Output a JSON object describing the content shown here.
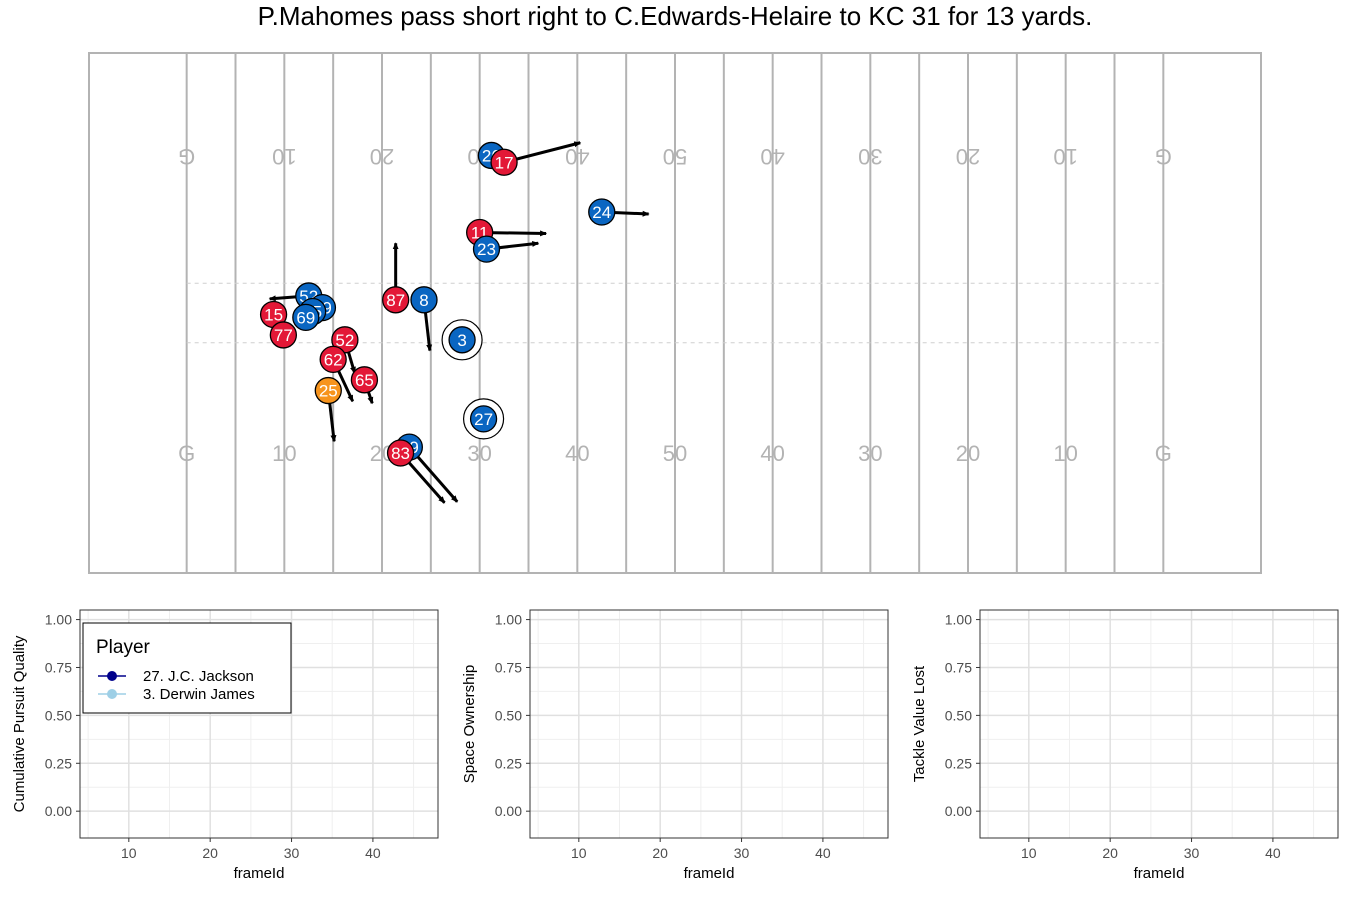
{
  "title": "P.Mahomes pass short right to C.Edwards-Helaire to KC 31 for 13 yards.",
  "colors": {
    "offense": "#e31837",
    "defense": "#0a66c2",
    "ball_carrier": "#f7941d",
    "field_lines": "#b3b3b3",
    "grid": "#e0e0e0",
    "arrow": "#000000",
    "series_1": "#00008b",
    "series_2": "#9ecfe6"
  },
  "field": {
    "labels_top": [
      "G",
      "10",
      "20",
      "30",
      "40",
      "50",
      "40",
      "30",
      "20",
      "10",
      "G"
    ],
    "labels_bottom": [
      "G",
      "10",
      "20",
      "30",
      "40",
      "50",
      "40",
      "30",
      "20",
      "10",
      "G"
    ],
    "players": [
      {
        "num": "26",
        "team": "defense",
        "x": 41.2,
        "y": 42.8,
        "dx": 0,
        "dy": 0
      },
      {
        "num": "17",
        "team": "offense",
        "x": 42.5,
        "y": 42.1,
        "dx": 7.8,
        "dy": 2.0
      },
      {
        "num": "24",
        "team": "defense",
        "x": 52.5,
        "y": 37.0,
        "dx": 4.8,
        "dy": -0.2
      },
      {
        "num": "11",
        "team": "offense",
        "x": 40.0,
        "y": 34.9,
        "dx": 6.8,
        "dy": -0.1
      },
      {
        "num": "23",
        "team": "defense",
        "x": 40.7,
        "y": 33.2,
        "dx": 5.3,
        "dy": 0.6
      },
      {
        "num": "87",
        "team": "offense",
        "x": 31.4,
        "y": 28.0,
        "dx": 0.0,
        "dy": 5.8
      },
      {
        "num": "8",
        "team": "defense",
        "x": 34.3,
        "y": 28.0,
        "dx": 0.6,
        "dy": -5.2
      },
      {
        "num": "52",
        "team": "defense",
        "x": 22.5,
        "y": 28.4,
        "dx": -4.0,
        "dy": -0.3
      },
      {
        "num": "99",
        "team": "defense",
        "x": 23.9,
        "y": 27.2,
        "dx": 0,
        "dy": 0
      },
      {
        "num": "55",
        "team": "defense",
        "x": 22.9,
        "y": 26.8,
        "dx": 0,
        "dy": 0
      },
      {
        "num": "69",
        "team": "defense",
        "x": 22.2,
        "y": 26.2,
        "dx": 0,
        "dy": 0
      },
      {
        "num": "15",
        "team": "offense",
        "x": 18.9,
        "y": 26.5,
        "dx": 0,
        "dy": 0
      },
      {
        "num": "77",
        "team": "offense",
        "x": 19.9,
        "y": 24.4,
        "dx": 0,
        "dy": 0
      },
      {
        "num": "52",
        "team": "offense",
        "x": 26.2,
        "y": 23.9,
        "dx": 1.0,
        "dy": -3.4
      },
      {
        "num": "62",
        "team": "offense",
        "x": 25.0,
        "y": 21.9,
        "dx": 2.0,
        "dy": -4.3
      },
      {
        "num": "65",
        "team": "offense",
        "x": 28.2,
        "y": 19.8,
        "dx": 0.8,
        "dy": -2.4
      },
      {
        "num": "25",
        "team": "ball_carrier",
        "x": 24.5,
        "y": 18.7,
        "dx": 0.6,
        "dy": -5.2
      },
      {
        "num": "3",
        "team": "defense",
        "x": 38.2,
        "y": 23.9,
        "dx": -1.9,
        "dy": 0.1
      },
      {
        "num": "27",
        "team": "defense",
        "x": 40.4,
        "y": 15.8,
        "dx": 0.4,
        "dy": -1.8
      },
      {
        "num": "49",
        "team": "defense",
        "x": 32.8,
        "y": 12.9,
        "dx": 4.9,
        "dy": -5.6
      },
      {
        "num": "83",
        "team": "offense",
        "x": 31.9,
        "y": 12.3,
        "dx": 4.5,
        "dy": -5.1
      }
    ],
    "highlighted": [
      "3",
      "27"
    ]
  },
  "panels": [
    {
      "ylabel": "Cumulative Pursuit Quality",
      "xlabel": "frameId",
      "xticks": [
        "10",
        "20",
        "30",
        "40"
      ],
      "yticks": [
        "0.00",
        "0.25",
        "0.50",
        "0.75",
        "1.00"
      ],
      "legend": {
        "title": "Player",
        "items": [
          "27. J.C. Jackson",
          "3. Derwin James"
        ]
      }
    },
    {
      "ylabel": "Space Ownership",
      "xlabel": "frameId",
      "xticks": [
        "10",
        "20",
        "30",
        "40"
      ],
      "yticks": [
        "0.00",
        "0.25",
        "0.50",
        "0.75",
        "1.00"
      ]
    },
    {
      "ylabel": "Tackle Value Lost",
      "xlabel": "frameId",
      "xticks": [
        "10",
        "20",
        "30",
        "40"
      ],
      "yticks": [
        "0.00",
        "0.25",
        "0.50",
        "0.75",
        "1.00"
      ]
    }
  ],
  "chart_data": [
    {
      "type": "scatter",
      "title": "P.Mahomes pass short right to C.Edwards-Helaire to KC 31 for 13 yards.",
      "xlim": [
        0,
        120
      ],
      "ylim": [
        0,
        53.3
      ],
      "series": [
        {
          "name": "offense",
          "points": [
            [
              "17",
              42.5,
              42.1
            ],
            [
              "11",
              40.0,
              34.9
            ],
            [
              "87",
              31.4,
              28.0
            ],
            [
              "15",
              18.9,
              26.5
            ],
            [
              "77",
              19.9,
              24.4
            ],
            [
              "52",
              26.2,
              23.9
            ],
            [
              "62",
              25.0,
              21.9
            ],
            [
              "65",
              28.2,
              19.8
            ],
            [
              "83",
              31.9,
              12.3
            ]
          ]
        },
        {
          "name": "defense",
          "points": [
            [
              "26",
              41.2,
              42.8
            ],
            [
              "24",
              52.5,
              37.0
            ],
            [
              "23",
              40.7,
              33.2
            ],
            [
              "8",
              34.3,
              28.0
            ],
            [
              "52",
              22.5,
              28.4
            ],
            [
              "99",
              23.9,
              27.2
            ],
            [
              "55",
              22.9,
              26.8
            ],
            [
              "69",
              22.2,
              26.2
            ],
            [
              "3",
              38.2,
              23.9
            ],
            [
              "27",
              40.4,
              15.8
            ],
            [
              "49",
              32.8,
              12.9
            ]
          ]
        },
        {
          "name": "ball_carrier",
          "points": [
            [
              "25",
              24.5,
              18.7
            ]
          ]
        }
      ],
      "grid": false
    },
    {
      "type": "line",
      "ylabel": "Cumulative Pursuit Quality",
      "xlabel": "frameId",
      "xlim": [
        4,
        48
      ],
      "ylim": [
        -0.14,
        1.05
      ],
      "series": [
        {
          "name": "27. J.C. Jackson",
          "values": []
        },
        {
          "name": "3. Derwin James",
          "values": []
        }
      ],
      "grid": true,
      "legend": "top-left"
    },
    {
      "type": "line",
      "ylabel": "Space Ownership",
      "xlabel": "frameId",
      "xlim": [
        4,
        48
      ],
      "ylim": [
        -0.14,
        1.05
      ],
      "series": [],
      "grid": true
    },
    {
      "type": "line",
      "ylabel": "Tackle Value Lost",
      "xlabel": "frameId",
      "xlim": [
        4,
        48
      ],
      "ylim": [
        -0.14,
        1.05
      ],
      "series": [],
      "grid": true
    }
  ]
}
